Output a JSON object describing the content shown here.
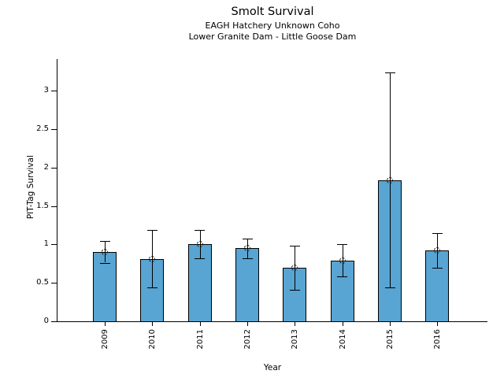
{
  "chart_data": {
    "type": "bar",
    "title": "Smolt Survival",
    "subtitle1": "EAGH Hatchery Unknown Coho",
    "subtitle2": "Lower Granite Dam - Little Goose Dam",
    "xlabel": "Year",
    "ylabel": "PIT-Tag Survival",
    "categories": [
      "2009",
      "2010",
      "2011",
      "2012",
      "2013",
      "2014",
      "2015",
      "2016"
    ],
    "values": [
      0.9,
      0.81,
      1.0,
      0.95,
      0.7,
      0.79,
      1.83,
      0.92
    ],
    "error_low": [
      0.76,
      0.44,
      0.82,
      0.82,
      0.41,
      0.58,
      0.44,
      0.7
    ],
    "error_high": [
      1.04,
      1.19,
      1.19,
      1.08,
      0.98,
      1.0,
      3.24,
      1.15
    ],
    "ytick_values": [
      0,
      0.5,
      1,
      1.5,
      2,
      2.5,
      3
    ],
    "ytick_labels": [
      "0",
      "0.5",
      "1",
      "1.5",
      "2",
      "2.5",
      "3"
    ],
    "ylim": [
      0,
      3.41
    ],
    "grid": "off",
    "legend": "none",
    "marker_style": "open-circle-dashed",
    "bar_color": "#58a4d2",
    "bar_edge_color": "#000000",
    "error_color": "#000000"
  }
}
